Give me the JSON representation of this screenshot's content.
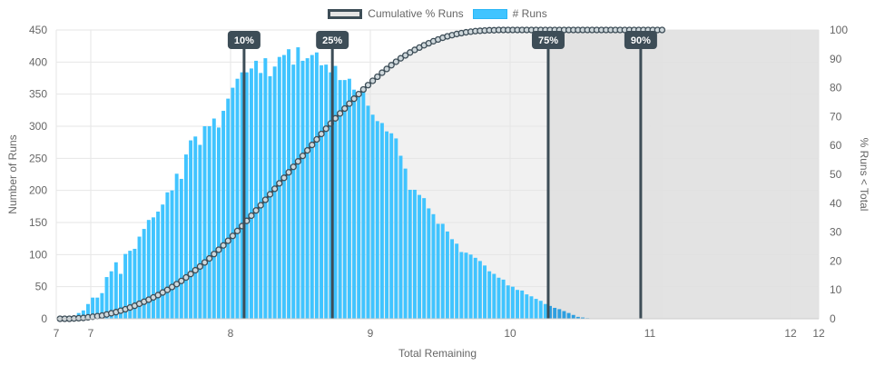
{
  "chart_data": {
    "type": "bar",
    "xlabel": "Total Remaining",
    "ylabel": "Number of Runs",
    "y2label": "% Runs < Total",
    "xlim": [
      6.76,
      12.2
    ],
    "ylim": [
      0,
      450
    ],
    "y2lim": [
      0,
      100
    ],
    "x_ticks": [
      "7",
      "7",
      "8",
      "9",
      "10",
      "11",
      "12",
      "12"
    ],
    "y_ticks": [
      "0",
      "50",
      "100",
      "150",
      "200",
      "250",
      "300",
      "350",
      "400",
      "450"
    ],
    "y2_ticks": [
      "0",
      "10",
      "20",
      "30",
      "40",
      "50",
      "60",
      "70",
      "80",
      "90",
      "100"
    ],
    "legend": [
      {
        "label": "Cumulative % Runs",
        "color": "#3d4d57",
        "fill": "#e4e4e4"
      },
      {
        "label": "# Runs",
        "color": "#40c4ff"
      }
    ],
    "bar_color": "#40c4ff",
    "bar_color_after_75": "#2e9fe0",
    "line_color": "#3d4d57",
    "bin_start": 6.77,
    "bin_width": 0.0333,
    "series": [
      {
        "name": "# Runs",
        "values": [
          0,
          0,
          1,
          3,
          9,
          13,
          23,
          33,
          33,
          40,
          65,
          74,
          88,
          70,
          101,
          106,
          109,
          128,
          140,
          154,
          158,
          167,
          178,
          197,
          200,
          226,
          218,
          256,
          278,
          284,
          271,
          300,
          300,
          312,
          298,
          324,
          343,
          360,
          374,
          384,
          384,
          390,
          402,
          383,
          406,
          378,
          393,
          408,
          411,
          420,
          396,
          423,
          402,
          406,
          411,
          415,
          395,
          396,
          384,
          394,
          372,
          372,
          374,
          357,
          352,
          354,
          332,
          318,
          308,
          305,
          292,
          289,
          281,
          254,
          234,
          201,
          201,
          193,
          188,
          172,
          163,
          148,
          148,
          136,
          124,
          117,
          104,
          103,
          100,
          95,
          90,
          83,
          74,
          70,
          64,
          61,
          52,
          50,
          45,
          44,
          38,
          35,
          31,
          28,
          23,
          20,
          17,
          15,
          12,
          9,
          6,
          3,
          2,
          1,
          0,
          0,
          0,
          0,
          0,
          0,
          0,
          0,
          0,
          0,
          0,
          0,
          0,
          0,
          0,
          0
        ]
      },
      {
        "name": "Cumulative % Runs",
        "values": [
          0,
          0,
          0,
          0.1,
          0.2,
          0.3,
          0.5,
          0.7,
          0.9,
          1.1,
          1.5,
          1.9,
          2.3,
          2.8,
          3.3,
          3.9,
          4.5,
          5.2,
          5.9,
          6.6,
          7.4,
          8.2,
          9.1,
          10.0,
          11.0,
          12.0,
          13.1,
          14.3,
          15.5,
          16.8,
          18.1,
          19.5,
          20.9,
          22.4,
          23.9,
          25.4,
          27.0,
          28.7,
          30.4,
          32.1,
          33.9,
          35.7,
          37.5,
          39.3,
          41.2,
          43.1,
          45.0,
          46.9,
          48.8,
          50.7,
          52.6,
          54.5,
          56.4,
          58.3,
          60.2,
          62.1,
          64.0,
          65.8,
          67.6,
          69.4,
          71.1,
          72.8,
          74.5,
          76.2,
          77.8,
          79.4,
          80.9,
          82.4,
          83.8,
          85.2,
          86.5,
          87.8,
          89.0,
          90.2,
          91.2,
          92.2,
          93.1,
          93.9,
          94.7,
          95.4,
          96.1,
          96.7,
          97.3,
          97.8,
          98.2,
          98.6,
          98.9,
          99.2,
          99.4,
          99.6,
          99.7,
          99.8,
          99.9,
          99.9,
          100,
          100,
          100,
          100,
          100,
          100,
          100,
          100,
          100,
          100,
          100,
          100,
          100,
          100,
          100,
          100,
          100,
          100,
          100,
          100,
          100,
          100,
          100,
          100,
          100,
          100,
          100,
          100,
          100,
          100,
          100,
          100,
          100,
          100,
          100,
          100
        ]
      }
    ],
    "percentile_markers": [
      {
        "label": "10%",
        "x": 8.1
      },
      {
        "label": "25%",
        "x": 8.73
      },
      {
        "label": "75%",
        "x": 10.27
      },
      {
        "label": "90%",
        "x": 10.93
      }
    ],
    "shaded_from_x": 10.27,
    "grid": true
  }
}
